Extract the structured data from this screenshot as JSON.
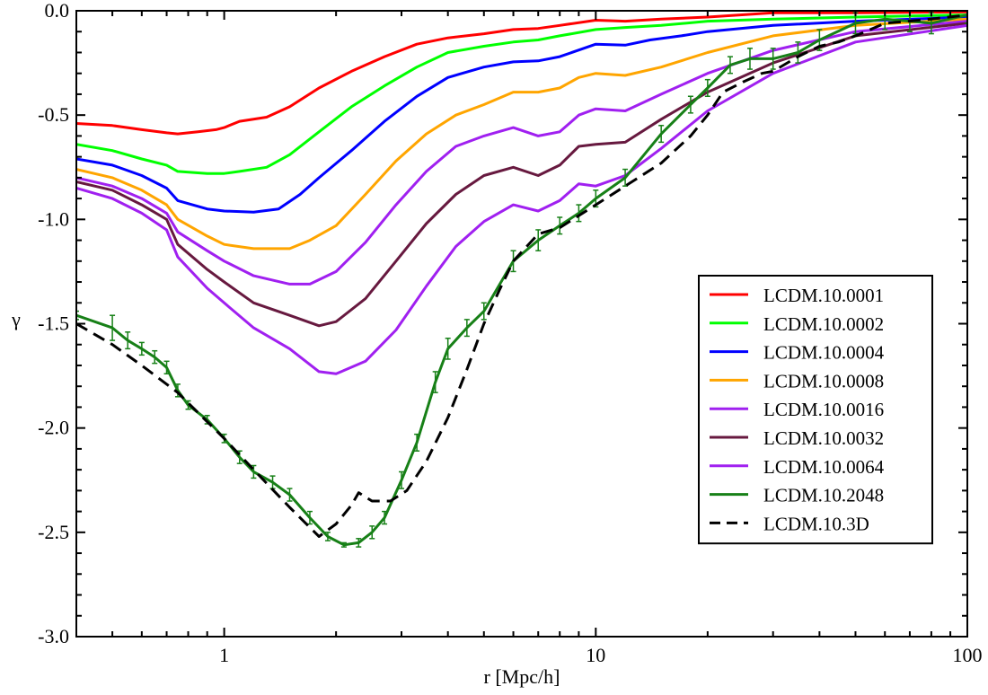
{
  "chart_data": {
    "type": "line",
    "title": "",
    "xlabel": "r [Mpc/h]",
    "ylabel": "γ",
    "xscale": "log",
    "xlim": [
      0.4,
      100
    ],
    "ylim": [
      -3.0,
      0.0
    ],
    "x_ticks": [
      {
        "value": 1,
        "label": "1"
      },
      {
        "value": 10,
        "label": "10"
      },
      {
        "value": 100,
        "label": "100"
      }
    ],
    "y_ticks": [
      {
        "value": 0.0,
        "label": "0.0"
      },
      {
        "value": -0.5,
        "label": "-0.5"
      },
      {
        "value": -1.0,
        "label": "-1.0"
      },
      {
        "value": -1.5,
        "label": "-1.5"
      },
      {
        "value": -2.0,
        "label": "-2.0"
      },
      {
        "value": -2.5,
        "label": "-2.5"
      },
      {
        "value": -3.0,
        "label": "-3.0"
      }
    ],
    "legend_position": "right",
    "series": [
      {
        "name": "LCDM.10.0001",
        "color": "#ff0000",
        "style": "solid",
        "points": [
          [
            0.4,
            -0.54
          ],
          [
            0.5,
            -0.55
          ],
          [
            0.6,
            -0.57
          ],
          [
            0.7,
            -0.585
          ],
          [
            0.75,
            -0.59
          ],
          [
            0.85,
            -0.58
          ],
          [
            0.95,
            -0.57
          ],
          [
            1.0,
            -0.56
          ],
          [
            1.1,
            -0.53
          ],
          [
            1.3,
            -0.51
          ],
          [
            1.5,
            -0.46
          ],
          [
            1.8,
            -0.37
          ],
          [
            2.2,
            -0.29
          ],
          [
            2.7,
            -0.22
          ],
          [
            3.3,
            -0.16
          ],
          [
            4.0,
            -0.13
          ],
          [
            5.0,
            -0.11
          ],
          [
            6.0,
            -0.09
          ],
          [
            7.0,
            -0.085
          ],
          [
            8.0,
            -0.07
          ],
          [
            10.0,
            -0.045
          ],
          [
            12.0,
            -0.05
          ],
          [
            15.0,
            -0.04
          ],
          [
            20.0,
            -0.03
          ],
          [
            30.0,
            -0.01
          ],
          [
            50.0,
            -0.01
          ],
          [
            100.0,
            -0.005
          ]
        ]
      },
      {
        "name": "LCDM.10.0002",
        "color": "#00ff00",
        "style": "solid",
        "points": [
          [
            0.4,
            -0.64
          ],
          [
            0.5,
            -0.67
          ],
          [
            0.6,
            -0.71
          ],
          [
            0.7,
            -0.74
          ],
          [
            0.75,
            -0.77
          ],
          [
            0.9,
            -0.78
          ],
          [
            1.0,
            -0.78
          ],
          [
            1.1,
            -0.77
          ],
          [
            1.3,
            -0.75
          ],
          [
            1.5,
            -0.69
          ],
          [
            1.8,
            -0.58
          ],
          [
            2.2,
            -0.46
          ],
          [
            2.7,
            -0.36
          ],
          [
            3.3,
            -0.27
          ],
          [
            4.0,
            -0.2
          ],
          [
            5.0,
            -0.17
          ],
          [
            6.0,
            -0.15
          ],
          [
            7.0,
            -0.14
          ],
          [
            8.0,
            -0.12
          ],
          [
            10.0,
            -0.09
          ],
          [
            12.0,
            -0.08
          ],
          [
            15.0,
            -0.07
          ],
          [
            20.0,
            -0.05
          ],
          [
            30.0,
            -0.04
          ],
          [
            50.0,
            -0.03
          ],
          [
            100.0,
            -0.02
          ]
        ]
      },
      {
        "name": "LCDM.10.0004",
        "color": "#0000ff",
        "style": "solid",
        "points": [
          [
            0.4,
            -0.71
          ],
          [
            0.5,
            -0.74
          ],
          [
            0.6,
            -0.79
          ],
          [
            0.7,
            -0.85
          ],
          [
            0.75,
            -0.91
          ],
          [
            0.9,
            -0.95
          ],
          [
            1.0,
            -0.96
          ],
          [
            1.2,
            -0.965
          ],
          [
            1.4,
            -0.95
          ],
          [
            1.6,
            -0.88
          ],
          [
            1.8,
            -0.8
          ],
          [
            2.2,
            -0.67
          ],
          [
            2.7,
            -0.53
          ],
          [
            3.3,
            -0.41
          ],
          [
            4.0,
            -0.32
          ],
          [
            5.0,
            -0.27
          ],
          [
            6.0,
            -0.245
          ],
          [
            7.0,
            -0.24
          ],
          [
            8.0,
            -0.22
          ],
          [
            10.0,
            -0.16
          ],
          [
            12.0,
            -0.165
          ],
          [
            14.0,
            -0.14
          ],
          [
            17.0,
            -0.12
          ],
          [
            20.0,
            -0.1
          ],
          [
            30.0,
            -0.07
          ],
          [
            50.0,
            -0.05
          ],
          [
            100.0,
            -0.03
          ]
        ]
      },
      {
        "name": "LCDM.10.0008",
        "color": "#ffa500",
        "style": "solid",
        "points": [
          [
            0.4,
            -0.76
          ],
          [
            0.5,
            -0.8
          ],
          [
            0.6,
            -0.86
          ],
          [
            0.7,
            -0.93
          ],
          [
            0.75,
            -1.0
          ],
          [
            0.9,
            -1.08
          ],
          [
            1.0,
            -1.12
          ],
          [
            1.2,
            -1.14
          ],
          [
            1.5,
            -1.14
          ],
          [
            1.7,
            -1.1
          ],
          [
            2.0,
            -1.03
          ],
          [
            2.4,
            -0.88
          ],
          [
            2.9,
            -0.72
          ],
          [
            3.5,
            -0.59
          ],
          [
            4.2,
            -0.5
          ],
          [
            5.0,
            -0.45
          ],
          [
            6.0,
            -0.39
          ],
          [
            7.0,
            -0.39
          ],
          [
            8.0,
            -0.37
          ],
          [
            9.0,
            -0.32
          ],
          [
            10.0,
            -0.3
          ],
          [
            12.0,
            -0.31
          ],
          [
            15.0,
            -0.27
          ],
          [
            20.0,
            -0.2
          ],
          [
            30.0,
            -0.12
          ],
          [
            50.0,
            -0.07
          ],
          [
            100.0,
            -0.04
          ]
        ]
      },
      {
        "name": "LCDM.10.0016",
        "color": "#a020f0",
        "style": "solid",
        "points": [
          [
            0.4,
            -0.8
          ],
          [
            0.5,
            -0.84
          ],
          [
            0.6,
            -0.9
          ],
          [
            0.7,
            -0.97
          ],
          [
            0.75,
            -1.06
          ],
          [
            0.9,
            -1.15
          ],
          [
            1.0,
            -1.2
          ],
          [
            1.2,
            -1.27
          ],
          [
            1.5,
            -1.31
          ],
          [
            1.7,
            -1.31
          ],
          [
            2.0,
            -1.25
          ],
          [
            2.4,
            -1.11
          ],
          [
            2.9,
            -0.93
          ],
          [
            3.5,
            -0.77
          ],
          [
            4.2,
            -0.65
          ],
          [
            5.0,
            -0.6
          ],
          [
            6.0,
            -0.56
          ],
          [
            7.0,
            -0.6
          ],
          [
            8.0,
            -0.58
          ],
          [
            9.0,
            -0.5
          ],
          [
            10.0,
            -0.47
          ],
          [
            12.0,
            -0.48
          ],
          [
            15.0,
            -0.4
          ],
          [
            20.0,
            -0.3
          ],
          [
            30.0,
            -0.19
          ],
          [
            50.0,
            -0.1
          ],
          [
            100.0,
            -0.05
          ]
        ]
      },
      {
        "name": "LCDM.10.0032",
        "color": "#67193f",
        "style": "solid",
        "points": [
          [
            0.4,
            -0.82
          ],
          [
            0.5,
            -0.86
          ],
          [
            0.6,
            -0.93
          ],
          [
            0.7,
            -1.0
          ],
          [
            0.75,
            -1.12
          ],
          [
            0.9,
            -1.24
          ],
          [
            1.0,
            -1.3
          ],
          [
            1.2,
            -1.4
          ],
          [
            1.5,
            -1.46
          ],
          [
            1.8,
            -1.51
          ],
          [
            2.0,
            -1.49
          ],
          [
            2.4,
            -1.38
          ],
          [
            2.9,
            -1.2
          ],
          [
            3.5,
            -1.02
          ],
          [
            4.2,
            -0.88
          ],
          [
            5.0,
            -0.79
          ],
          [
            6.0,
            -0.75
          ],
          [
            7.0,
            -0.79
          ],
          [
            8.0,
            -0.74
          ],
          [
            9.0,
            -0.65
          ],
          [
            10.0,
            -0.64
          ],
          [
            12.0,
            -0.63
          ],
          [
            15.0,
            -0.52
          ],
          [
            20.0,
            -0.39
          ],
          [
            30.0,
            -0.25
          ],
          [
            50.0,
            -0.12
          ],
          [
            100.0,
            -0.06
          ]
        ]
      },
      {
        "name": "LCDM.10.0064",
        "color": "#a020f0",
        "style": "solid",
        "points": [
          [
            0.4,
            -0.85
          ],
          [
            0.5,
            -0.9
          ],
          [
            0.6,
            -0.97
          ],
          [
            0.7,
            -1.05
          ],
          [
            0.75,
            -1.18
          ],
          [
            0.9,
            -1.33
          ],
          [
            1.0,
            -1.4
          ],
          [
            1.2,
            -1.52
          ],
          [
            1.5,
            -1.62
          ],
          [
            1.8,
            -1.73
          ],
          [
            2.0,
            -1.74
          ],
          [
            2.4,
            -1.68
          ],
          [
            2.9,
            -1.53
          ],
          [
            3.5,
            -1.32
          ],
          [
            4.2,
            -1.13
          ],
          [
            5.0,
            -1.01
          ],
          [
            6.0,
            -0.93
          ],
          [
            7.0,
            -0.96
          ],
          [
            8.0,
            -0.91
          ],
          [
            9.0,
            -0.83
          ],
          [
            10.0,
            -0.84
          ],
          [
            12.0,
            -0.79
          ],
          [
            15.0,
            -0.66
          ],
          [
            20.0,
            -0.48
          ],
          [
            30.0,
            -0.3
          ],
          [
            50.0,
            -0.15
          ],
          [
            100.0,
            -0.07
          ]
        ]
      },
      {
        "name": "LCDM.10.2048",
        "color": "#178017",
        "style": "solid",
        "error_bars": true,
        "points": [
          [
            0.4,
            -1.46
          ],
          [
            0.5,
            -1.52
          ],
          [
            0.55,
            -1.58
          ],
          [
            0.6,
            -1.62
          ],
          [
            0.65,
            -1.66
          ],
          [
            0.7,
            -1.71
          ],
          [
            0.75,
            -1.82
          ],
          [
            0.8,
            -1.89
          ],
          [
            0.9,
            -1.96
          ],
          [
            1.0,
            -2.05
          ],
          [
            1.1,
            -2.14
          ],
          [
            1.2,
            -2.21
          ],
          [
            1.35,
            -2.26
          ],
          [
            1.5,
            -2.32
          ],
          [
            1.7,
            -2.43
          ],
          [
            1.9,
            -2.52
          ],
          [
            2.1,
            -2.56
          ],
          [
            2.3,
            -2.55
          ],
          [
            2.5,
            -2.5
          ],
          [
            2.7,
            -2.43
          ],
          [
            3.0,
            -2.25
          ],
          [
            3.3,
            -2.07
          ],
          [
            3.7,
            -1.78
          ],
          [
            4.0,
            -1.62
          ],
          [
            4.5,
            -1.52
          ],
          [
            5.0,
            -1.44
          ],
          [
            6.0,
            -1.2
          ],
          [
            7.0,
            -1.1
          ],
          [
            8.0,
            -1.03
          ],
          [
            9.0,
            -0.97
          ],
          [
            10.0,
            -0.9
          ],
          [
            12.0,
            -0.8
          ],
          [
            15.0,
            -0.59
          ],
          [
            18.0,
            -0.45
          ],
          [
            20.0,
            -0.37
          ],
          [
            23.0,
            -0.26
          ],
          [
            26.0,
            -0.23
          ],
          [
            30.0,
            -0.23
          ],
          [
            35.0,
            -0.2
          ],
          [
            40.0,
            -0.14
          ],
          [
            50.0,
            -0.06
          ],
          [
            60.0,
            -0.04
          ],
          [
            70.0,
            -0.05
          ],
          [
            80.0,
            -0.06
          ],
          [
            100.0,
            -0.02
          ]
        ],
        "errors": [
          0.02,
          0.06,
          0.04,
          0.03,
          0.03,
          0.03,
          0.03,
          0.02,
          0.02,
          0.02,
          0.03,
          0.03,
          0.03,
          0.03,
          0.03,
          0.02,
          0.01,
          0.02,
          0.03,
          0.03,
          0.04,
          0.04,
          0.05,
          0.05,
          0.04,
          0.04,
          0.05,
          0.05,
          0.04,
          0.04,
          0.04,
          0.04,
          0.04,
          0.04,
          0.04,
          0.04,
          0.05,
          0.05,
          0.05,
          0.05,
          0.05,
          0.05,
          0.05,
          0.05,
          0.04
        ]
      },
      {
        "name": "LCDM.10.3D",
        "color": "#000000",
        "style": "dashed",
        "points": [
          [
            0.4,
            -1.5
          ],
          [
            0.5,
            -1.6
          ],
          [
            0.6,
            -1.7
          ],
          [
            0.75,
            -1.83
          ],
          [
            0.9,
            -1.97
          ],
          [
            1.0,
            -2.05
          ],
          [
            1.2,
            -2.2
          ],
          [
            1.5,
            -2.38
          ],
          [
            1.8,
            -2.52
          ],
          [
            2.0,
            -2.46
          ],
          [
            2.2,
            -2.37
          ],
          [
            2.3,
            -2.31
          ],
          [
            2.5,
            -2.35
          ],
          [
            2.8,
            -2.35
          ],
          [
            3.1,
            -2.3
          ],
          [
            3.5,
            -2.16
          ],
          [
            4.0,
            -1.95
          ],
          [
            4.5,
            -1.72
          ],
          [
            5.0,
            -1.5
          ],
          [
            5.5,
            -1.34
          ],
          [
            6.0,
            -1.2
          ],
          [
            7.0,
            -1.07
          ],
          [
            8.0,
            -1.04
          ],
          [
            10.0,
            -0.93
          ],
          [
            12.0,
            -0.84
          ],
          [
            15.0,
            -0.73
          ],
          [
            18.0,
            -0.6
          ],
          [
            20.0,
            -0.5
          ],
          [
            22.0,
            -0.39
          ],
          [
            25.0,
            -0.34
          ],
          [
            28.0,
            -0.3
          ],
          [
            30.0,
            -0.29
          ],
          [
            35.0,
            -0.22
          ],
          [
            40.0,
            -0.17
          ],
          [
            45.0,
            -0.15
          ],
          [
            50.0,
            -0.12
          ],
          [
            60.0,
            -0.06
          ],
          [
            80.0,
            -0.04
          ],
          [
            100.0,
            -0.02
          ]
        ]
      }
    ]
  }
}
